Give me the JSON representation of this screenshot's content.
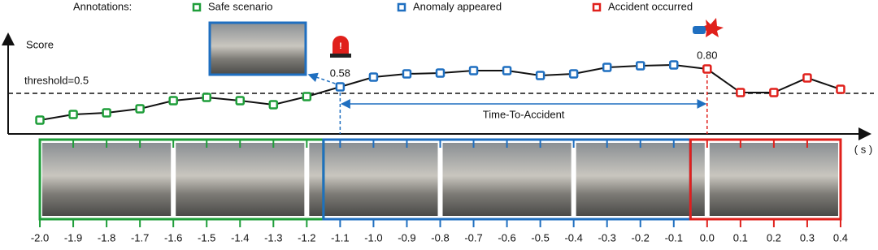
{
  "chart_data": {
    "type": "line",
    "legend_title": "Annotations:",
    "ylabel": "Score",
    "xlabel": "( s )",
    "x": [
      {
        "value": -2,
        "label": "-2.0"
      },
      -1.9,
      -1.8,
      -1.7,
      -1.6,
      -1.5,
      -1.4,
      -1.3,
      -1.2,
      -1.1,
      {
        "value": -1,
        "label": "-1.0"
      },
      -0.9,
      -0.8,
      -0.7,
      -0.6,
      -0.5,
      -0.4,
      -0.3,
      -0.2,
      -0.1,
      {
        "value": 0,
        "label": "0.0"
      },
      0.1,
      0.2,
      0.3,
      0.4
    ],
    "values": [
      0.17,
      0.24,
      0.26,
      0.31,
      0.41,
      0.45,
      0.41,
      0.36,
      0.46,
      0.58,
      0.7,
      0.74,
      0.75,
      0.78,
      0.78,
      0.72,
      0.74,
      0.82,
      0.84,
      0.85,
      0.8,
      0.51,
      0.51,
      0.69,
      0.55
    ],
    "value_labels": [
      null,
      null,
      null,
      null,
      null,
      null,
      null,
      null,
      null,
      "0.58",
      null,
      null,
      null,
      null,
      null,
      null,
      null,
      null,
      null,
      null,
      "0.80",
      null,
      null,
      null,
      null
    ],
    "line_color": "#111111",
    "phases": [
      {
        "name": "Safe scenario",
        "color": "#1f9e3a",
        "from": -2,
        "to": -1.2
      },
      {
        "name": "Anomaly appeared",
        "color": "#1f6fc0",
        "from": -1.1,
        "to": -0.1
      },
      {
        "name": "Accident occurred",
        "color": "#e0201b",
        "from": 0,
        "to": 0.4
      }
    ],
    "threshold": {
      "value": 0.5,
      "label": "threshold=0.5"
    },
    "interval": {
      "label": "Time-To-Accident",
      "from": -1.1,
      "to": 0
    },
    "xlim": [
      -2.1,
      0.5
    ],
    "ylim": [
      0,
      1.2
    ]
  }
}
